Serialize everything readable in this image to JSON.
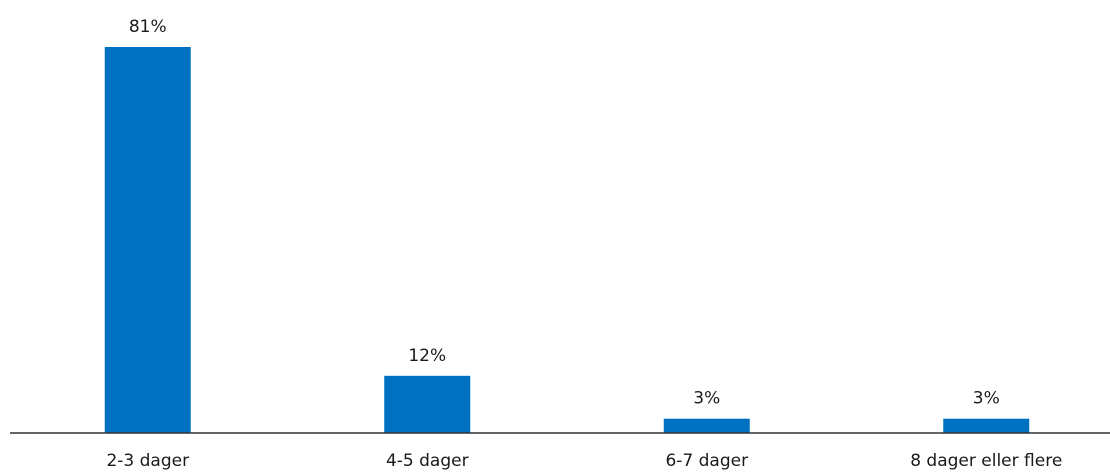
{
  "chart_data": {
    "type": "bar",
    "categories": [
      "2-3 dager",
      "4-5 dager",
      "6-7 dager",
      "8 dager eller flere"
    ],
    "values": [
      81,
      12,
      3,
      3
    ],
    "value_labels": [
      "81%",
      "12%",
      "3%",
      "3%"
    ],
    "unit": "%",
    "ylim": [
      0,
      100
    ],
    "grid": false,
    "legend": "none",
    "bar_color": "#0070C0",
    "axis_color": "#333333"
  }
}
